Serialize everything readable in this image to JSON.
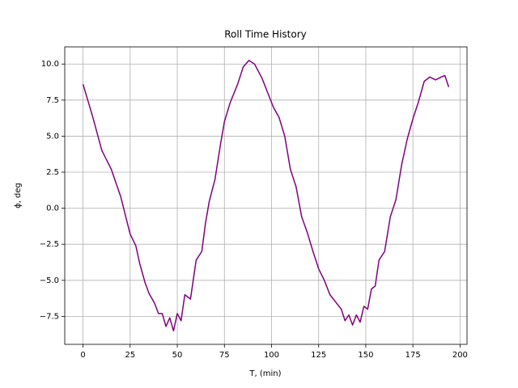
{
  "chart_data": {
    "type": "line",
    "title": "Roll Time History",
    "x_label": "T, (min)",
    "y_label": "ϕ, deg",
    "color": "#800080",
    "grid": true,
    "x": [
      0,
      5,
      10,
      15,
      20,
      25,
      28,
      30,
      33,
      35,
      38,
      40,
      42,
      44,
      46,
      48,
      50,
      52,
      54,
      57,
      60,
      63,
      65,
      67,
      70,
      73,
      75,
      78,
      82,
      85,
      88,
      91,
      95,
      98,
      101,
      104,
      107,
      110,
      113,
      116,
      119,
      122,
      125,
      128,
      131,
      134,
      137,
      139,
      141,
      143,
      145,
      147,
      149,
      151,
      153,
      155,
      157,
      160,
      163,
      166,
      169,
      172,
      175,
      178,
      181,
      184,
      187,
      190,
      192,
      194
    ],
    "values": [
      8.6,
      6.4,
      4.0,
      2.7,
      0.8,
      -1.8,
      -2.6,
      -3.8,
      -5.2,
      -5.9,
      -6.6,
      -7.3,
      -7.3,
      -8.2,
      -7.6,
      -8.5,
      -7.3,
      -7.8,
      -6.0,
      -6.3,
      -3.6,
      -3.0,
      -1.0,
      0.5,
      2.0,
      4.5,
      6.0,
      7.3,
      8.6,
      9.8,
      10.25,
      10.0,
      9.0,
      8.0,
      7.0,
      6.3,
      5.0,
      2.7,
      1.5,
      -0.6,
      -1.7,
      -3.0,
      -4.2,
      -5.0,
      -6.0,
      -6.5,
      -7.0,
      -7.8,
      -7.4,
      -8.1,
      -7.4,
      -7.9,
      -6.8,
      -7.0,
      -5.6,
      -5.4,
      -3.6,
      -3.0,
      -0.6,
      0.6,
      3.0,
      4.8,
      6.2,
      7.4,
      8.8,
      9.1,
      8.9,
      9.1,
      9.2,
      8.4
    ],
    "xlim": [
      -9.7,
      203.7
    ],
    "ylim": [
      -9.44,
      11.19
    ],
    "xticks": [
      0,
      25,
      50,
      75,
      100,
      125,
      150,
      175,
      200
    ],
    "yticks": [
      {
        "value": -7.5,
        "label": "−7.5"
      },
      {
        "value": -5,
        "label": "−5.0"
      },
      {
        "value": -2.5,
        "label": "−2.5"
      },
      {
        "value": 0,
        "label": "0.0"
      },
      {
        "value": 2.5,
        "label": "2.5"
      },
      {
        "value": 5,
        "label": "5.0"
      },
      7.5,
      {
        "value": 10,
        "label": "10.0"
      }
    ]
  }
}
